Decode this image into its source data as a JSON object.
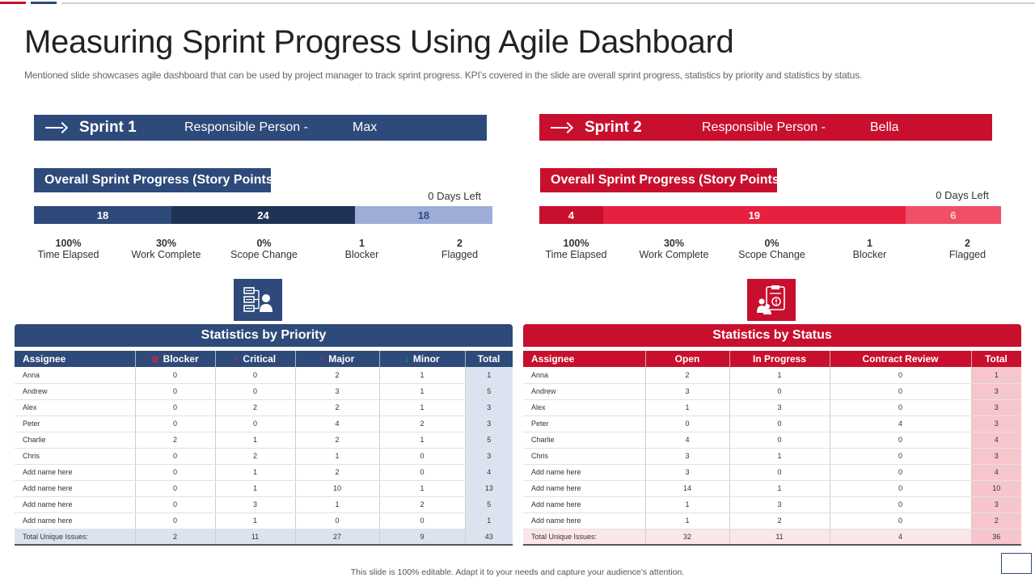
{
  "title": "Measuring Sprint Progress Using Agile Dashboard",
  "subtitle": "Mentioned slide showcases agile dashboard that can be used by project manager to track sprint progress. KPI’s covered in the slide are overall sprint progress, statistics by priority and statistics by status.",
  "colors": {
    "blue": "#2e4a7a",
    "dark_blue": "#1f3356",
    "light_blue": "#9eadd8",
    "red": "#c8102e",
    "bright_red": "#e8203f",
    "light_red": "#f04f68"
  },
  "sprint1": {
    "name": "Sprint 1",
    "responsible_label": "Responsible Person -",
    "responsible_name": "Max",
    "progress_title": "Overall Sprint Progress (Story Points)",
    "days_left": "0 Days Left",
    "segments": [
      {
        "label": "18",
        "value": 18,
        "color": "#2e4a7a"
      },
      {
        "label": "24",
        "value": 24,
        "color": "#1f3356"
      },
      {
        "label": "18",
        "value": 18,
        "color": "#9eadd8"
      }
    ],
    "kpis": [
      {
        "value": "100%",
        "label": "Time Elapsed"
      },
      {
        "value": "30%",
        "label": "Work Complete"
      },
      {
        "value": "0%",
        "label": "Scope Change"
      },
      {
        "value": "1",
        "label": "Blocker"
      },
      {
        "value": "2",
        "label": "Flagged"
      }
    ],
    "icon": "org-chart-person-icon"
  },
  "sprint2": {
    "name": "Sprint 2",
    "responsible_label": "Responsible Person -",
    "responsible_name": "Bella",
    "progress_title": "Overall Sprint Progress (Story Points)",
    "days_left": "0 Days Left",
    "segments": [
      {
        "label": "4",
        "value": 4,
        "color": "#c8102e"
      },
      {
        "label": "19",
        "value": 19,
        "color": "#e8203f"
      },
      {
        "label": "6",
        "value": 6,
        "color": "#f04f68"
      }
    ],
    "kpis": [
      {
        "value": "100%",
        "label": "Time Elapsed"
      },
      {
        "value": "30%",
        "label": "Work Complete"
      },
      {
        "value": "0%",
        "label": "Scope Change"
      },
      {
        "value": "1",
        "label": "Blocker"
      },
      {
        "value": "2",
        "label": "Flagged"
      }
    ],
    "icon": "clipboard-people-icon"
  },
  "priority": {
    "heading": "Statistics  by Priority",
    "headers": [
      "Assignee",
      "Blocker",
      "Critical",
      "Major",
      "Minor",
      "Total"
    ],
    "header_icons": [
      "",
      "blocker-icon",
      "critical-arrow-up-icon",
      "major-arrow-up-icon",
      "minor-arrow-down-icon",
      ""
    ],
    "rows": [
      [
        "Anna",
        "0",
        "0",
        "2",
        "1",
        "1"
      ],
      [
        "Andrew",
        "0",
        "0",
        "3",
        "1",
        "5"
      ],
      [
        "Alex",
        "0",
        "2",
        "2",
        "1",
        "3"
      ],
      [
        "Peter",
        "0",
        "0",
        "4",
        "2",
        "3"
      ],
      [
        "Charlie",
        "2",
        "1",
        "2",
        "1",
        "5"
      ],
      [
        "Chris",
        "0",
        "2",
        "1",
        "0",
        "3"
      ],
      [
        "Add name here",
        "0",
        "1",
        "2",
        "0",
        "4"
      ],
      [
        "Add name here",
        "0",
        "1",
        "10",
        "1",
        "13"
      ],
      [
        "Add name here",
        "0",
        "3",
        "1",
        "2",
        "5"
      ],
      [
        "Add name here",
        "0",
        "1",
        "0",
        "0",
        "1"
      ]
    ],
    "total_row": [
      "Total Unique Issues:",
      "2",
      "11",
      "27",
      "9",
      "43"
    ]
  },
  "status": {
    "heading": "Statistics  by Status",
    "headers": [
      "Assignee",
      "Open",
      "In Progress",
      "Contract Review",
      "Total"
    ],
    "rows": [
      [
        "Anna",
        "2",
        "1",
        "0",
        "1"
      ],
      [
        "Andrew",
        "3",
        "0",
        "0",
        "3"
      ],
      [
        "Alex",
        "1",
        "3",
        "0",
        "3"
      ],
      [
        "Peter",
        "0",
        "0",
        "4",
        "3"
      ],
      [
        "Charlie",
        "4",
        "0",
        "0",
        "4"
      ],
      [
        "Chris",
        "3",
        "1",
        "0",
        "3"
      ],
      [
        "Add name here",
        "3",
        "0",
        "0",
        "4"
      ],
      [
        "Add name here",
        "14",
        "1",
        "0",
        "10"
      ],
      [
        "Add name here",
        "1",
        "3",
        "0",
        "3"
      ],
      [
        "Add name here",
        "1",
        "2",
        "0",
        "2"
      ]
    ],
    "total_row": [
      "Total Unique Issues:",
      "32",
      "11",
      "4",
      "36"
    ]
  },
  "footer": "This slide is 100% editable. Adapt it to your needs and capture your audience’s attention."
}
